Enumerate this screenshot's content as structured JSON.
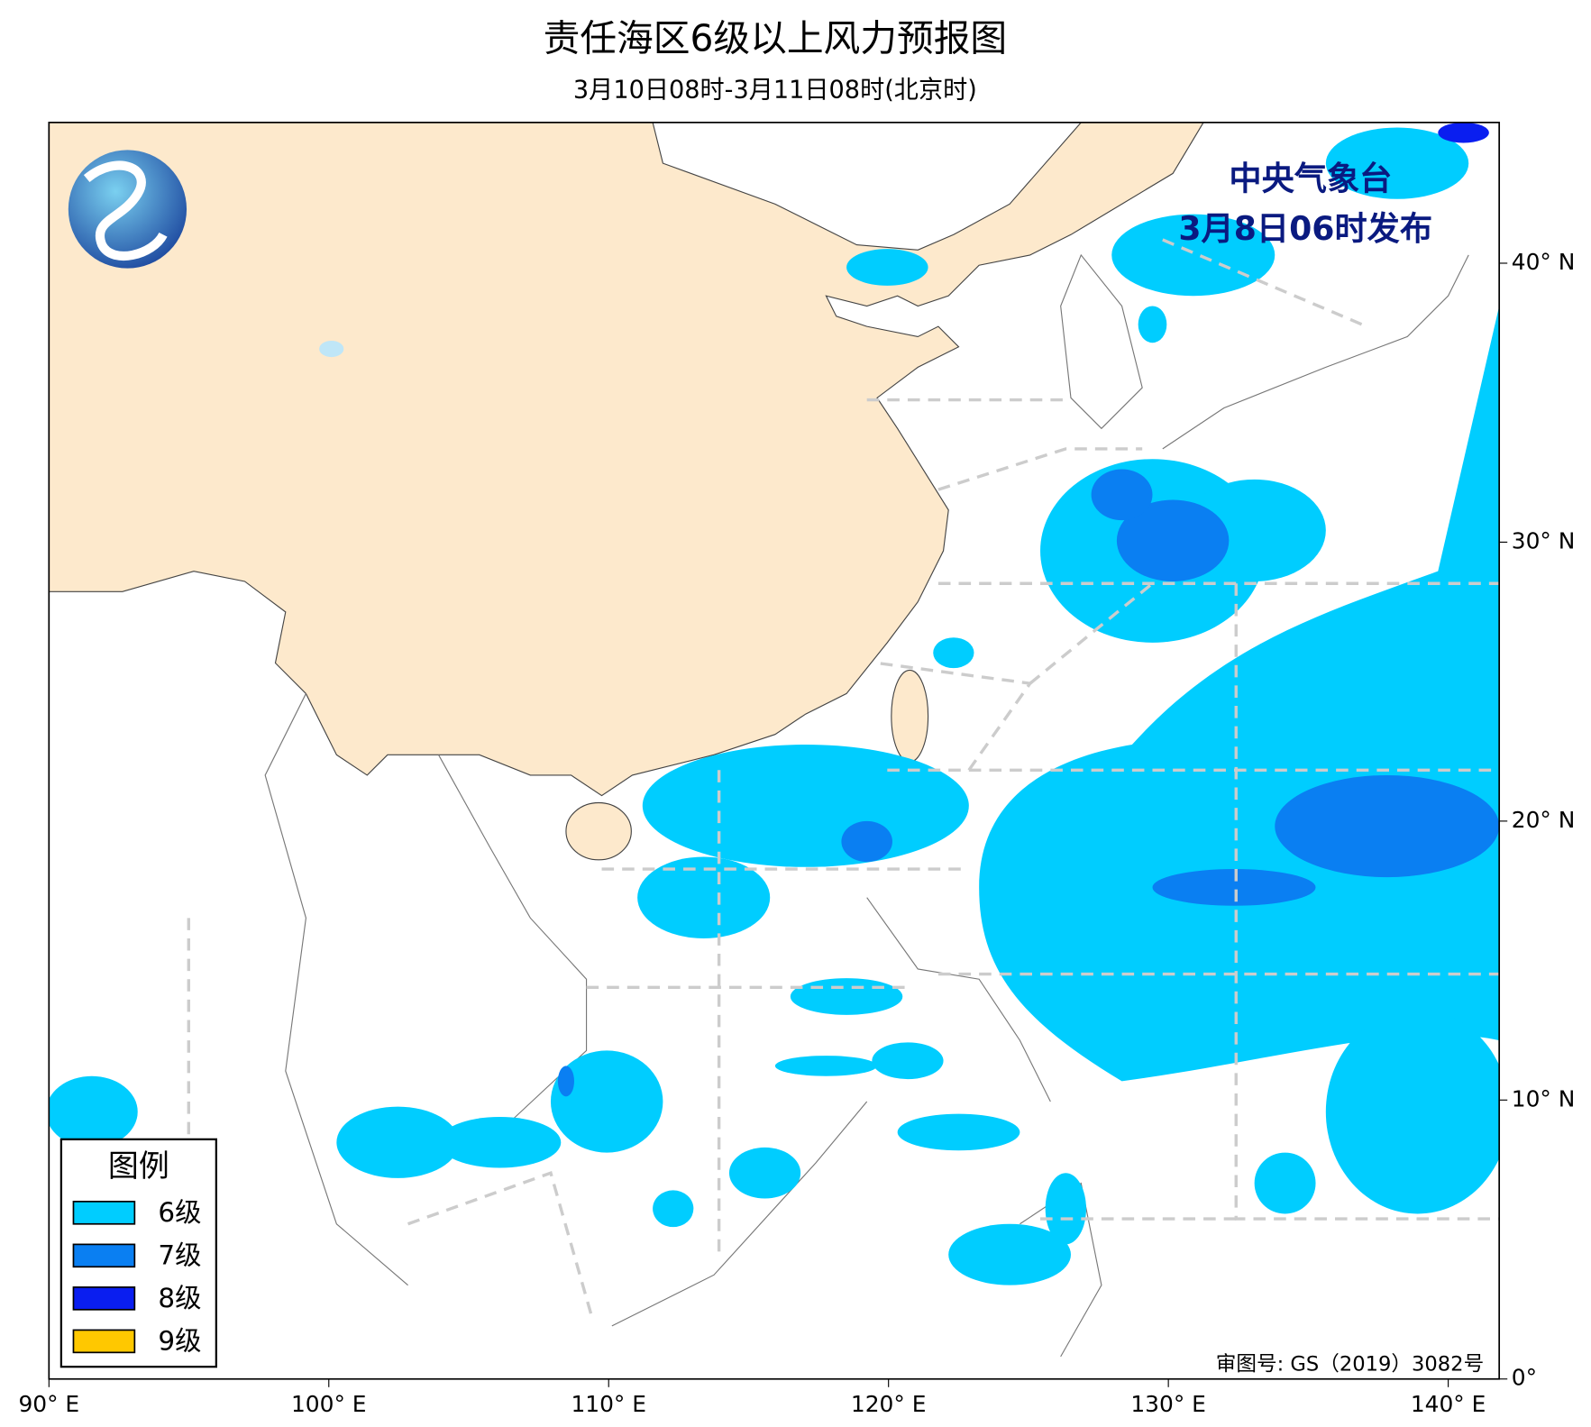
{
  "header": {
    "title": "责任海区6级以上风力预报图",
    "subtitle": "3月10日08时-3月11日08时(北京时)"
  },
  "issuer": {
    "name": "中央气象台",
    "time": "3月8日06时发布"
  },
  "map": {
    "xlim": [
      90,
      142
    ],
    "ylim": [
      0,
      45
    ],
    "xticks": [
      {
        "value": 90,
        "label": "90° E"
      },
      {
        "value": 100,
        "label": "100° E"
      },
      {
        "value": 110,
        "label": "110° E"
      },
      {
        "value": 120,
        "label": "120° E"
      },
      {
        "value": 130,
        "label": "130° E"
      },
      {
        "value": 140,
        "label": "140° E"
      }
    ],
    "yticks": [
      {
        "value": 0,
        "label": "0°"
      },
      {
        "value": 10,
        "label": "10° N"
      },
      {
        "value": 20,
        "label": "20° N"
      },
      {
        "value": 30,
        "label": "30° N"
      },
      {
        "value": 40,
        "label": "40° N"
      }
    ]
  },
  "legend": {
    "title": "图例",
    "items": [
      {
        "label": "6级",
        "color": "#00cdff"
      },
      {
        "label": "7级",
        "color": "#0a7ff2"
      },
      {
        "label": "8级",
        "color": "#0a1ef0"
      },
      {
        "label": "9级",
        "color": "#ffc800"
      }
    ]
  },
  "approval": "审图号: GS（2019）3082号"
}
